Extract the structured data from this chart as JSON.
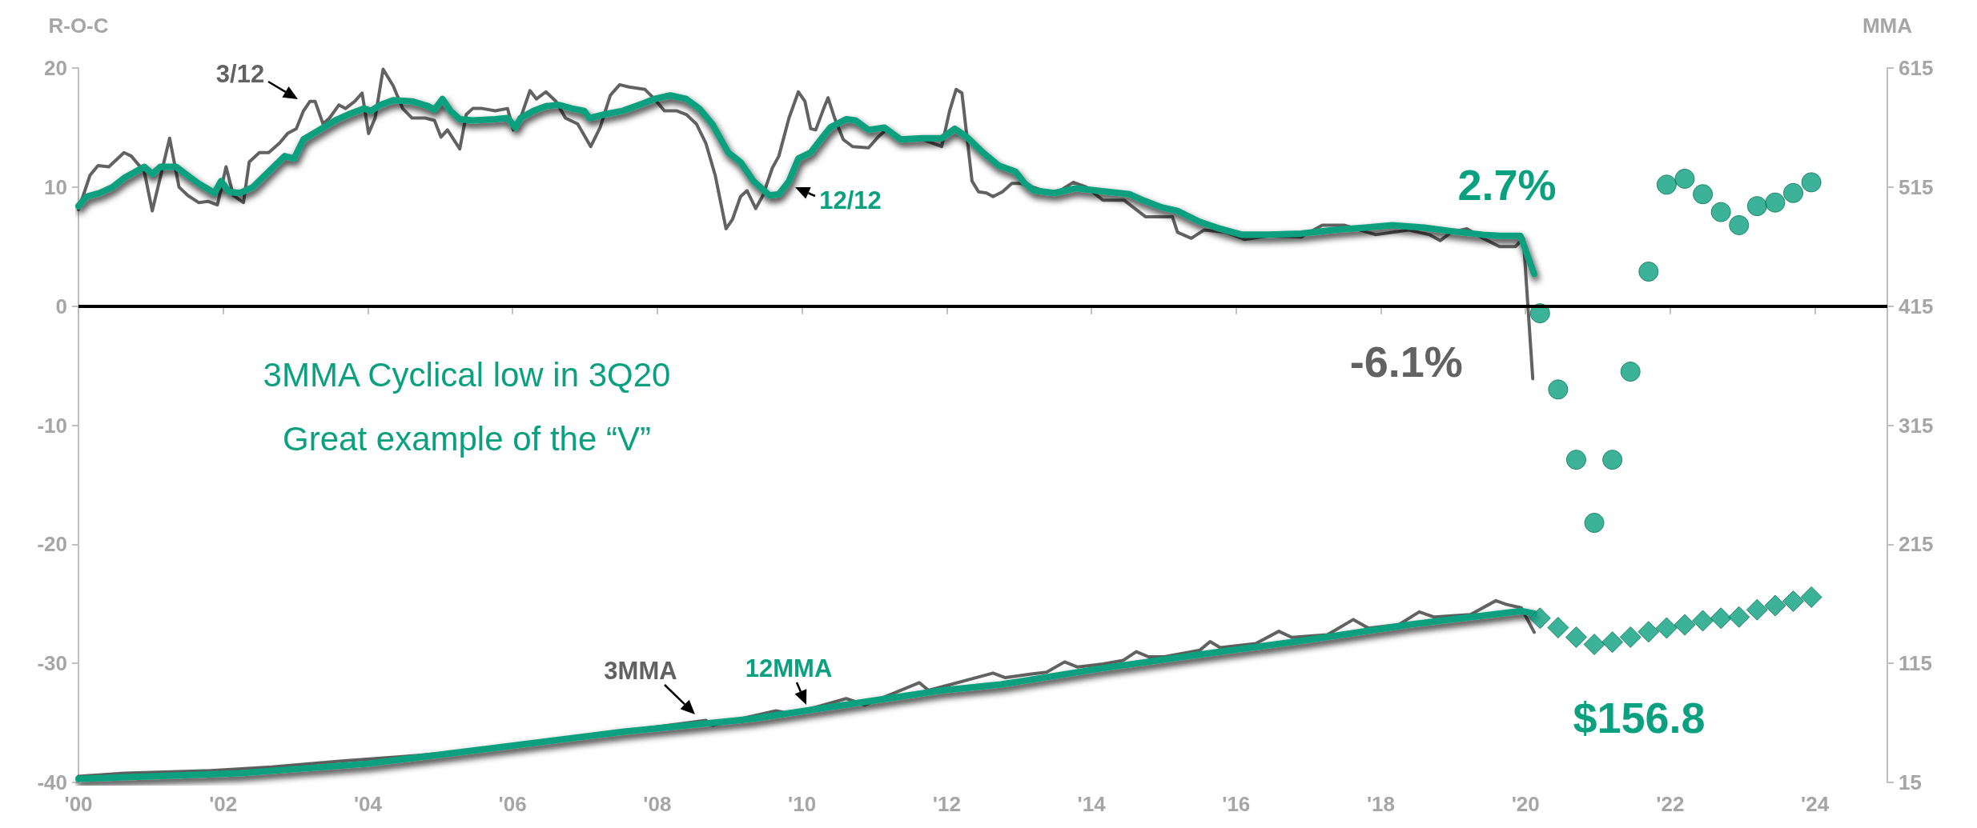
{
  "chart_data": {
    "type": "line",
    "ylabel": "R-O-C",
    "y2label": "MMA",
    "annotations": [
      "3MMA Cyclical low in 3Q20",
      "Great example of the “V”"
    ],
    "xlim": [
      2000,
      2025
    ],
    "xticks": [
      {
        "value": 2000,
        "label": "'00"
      },
      {
        "value": 2002,
        "label": "'02"
      },
      {
        "value": 2004,
        "label": "'04"
      },
      {
        "value": 2006,
        "label": "'06"
      },
      {
        "value": 2008,
        "label": "'08"
      },
      {
        "value": 2010,
        "label": "'10"
      },
      {
        "value": 2012,
        "label": "'12"
      },
      {
        "value": 2014,
        "label": "'14"
      },
      {
        "value": 2016,
        "label": "'16"
      },
      {
        "value": 2018,
        "label": "'18"
      },
      {
        "value": 2020,
        "label": "'20"
      },
      {
        "value": 2022,
        "label": "'22"
      },
      {
        "value": 2024,
        "label": "'24"
      }
    ],
    "ylim": [
      -40,
      20
    ],
    "yticks": [
      -40,
      -30,
      -20,
      -10,
      0,
      10,
      20
    ],
    "y2lim": [
      15,
      615
    ],
    "y2ticks": [
      15,
      115,
      215,
      315,
      415,
      515,
      615
    ],
    "legend": false,
    "ref_lines": [
      {
        "axis": "y",
        "value": 0,
        "color": "#000000"
      }
    ],
    "series": [
      {
        "name": "3/12",
        "type": "line",
        "axis": "y",
        "marker": "none",
        "color": "#626262",
        "x": [
          2000.0,
          2000.16,
          2000.27,
          2000.42,
          2000.63,
          2000.73,
          2000.91,
          2001.02,
          2001.13,
          2001.26,
          2001.39,
          2001.51,
          2001.66,
          2001.79,
          2001.92,
          2002.04,
          2002.14,
          2002.28,
          2002.36,
          2002.5,
          2002.63,
          2002.78,
          2002.89,
          2003.01,
          2003.11,
          2003.2,
          2003.27,
          2003.38,
          2003.47,
          2003.6,
          2003.69,
          2003.82,
          2003.92,
          2004.01,
          2004.1,
          2004.21,
          2004.35,
          2004.48,
          2004.61,
          2004.79,
          2004.92,
          2005.01,
          2005.1,
          2005.27,
          2005.36,
          2005.45,
          2005.58,
          2005.76,
          2005.93,
          2006.01,
          2006.11,
          2006.24,
          2006.33,
          2006.46,
          2006.6,
          2006.73,
          2006.9,
          2007.08,
          2007.21,
          2007.35,
          2007.48,
          2007.61,
          2007.83,
          2007.96,
          2008.1,
          2008.27,
          2008.4,
          2008.54,
          2008.67,
          2008.8,
          2008.95,
          2009.04,
          2009.15,
          2009.24,
          2009.36,
          2009.46,
          2009.59,
          2009.68,
          2009.82,
          2009.95,
          2010.04,
          2010.12,
          2010.19,
          2010.3,
          2010.36,
          2010.45,
          2010.57,
          2010.7,
          2010.92,
          2011.05,
          2011.18,
          2011.4,
          2011.67,
          2011.93,
          2012.04,
          2012.13,
          2012.21,
          2012.35,
          2012.44,
          2012.55,
          2012.64,
          2012.77,
          2012.9,
          2013.03,
          2013.49,
          2013.75,
          2013.93,
          2014.16,
          2014.45,
          2014.75,
          2015.12,
          2015.19,
          2015.38,
          2015.56,
          2015.86,
          2016.12,
          2016.45,
          2016.9,
          2017.19,
          2017.49,
          2017.93,
          2018.38,
          2018.67,
          2018.82,
          2018.97,
          2019.19,
          2019.41,
          2019.64,
          2019.86,
          2019.97,
          2020.1
        ],
        "values": [
          8.1,
          11.0,
          11.8,
          11.7,
          12.9,
          12.6,
          11.3,
          8.0,
          10.8,
          14.1,
          10.0,
          9.3,
          8.7,
          8.8,
          8.5,
          11.7,
          9.3,
          8.7,
          12.1,
          12.9,
          12.9,
          13.7,
          14.5,
          14.9,
          16.4,
          17.2,
          17.2,
          15.3,
          15.8,
          16.9,
          16.6,
          17.2,
          17.9,
          14.5,
          15.8,
          19.9,
          18.5,
          16.6,
          15.8,
          15.8,
          15.6,
          14.2,
          14.8,
          13.2,
          16.1,
          16.6,
          16.6,
          16.4,
          16.6,
          14.8,
          15.8,
          18.1,
          17.4,
          18.0,
          17.2,
          15.8,
          15.3,
          13.4,
          15.0,
          17.7,
          18.6,
          18.4,
          18.2,
          17.4,
          16.4,
          16.4,
          16.1,
          15.3,
          13.7,
          11.0,
          6.5,
          7.3,
          9.2,
          9.7,
          8.2,
          9.3,
          11.6,
          12.6,
          15.8,
          18.0,
          17.2,
          14.9,
          14.8,
          16.6,
          17.5,
          15.8,
          14.0,
          13.4,
          13.3,
          14.2,
          14.9,
          14.0,
          14.0,
          13.4,
          16.4,
          18.2,
          17.9,
          10.5,
          9.6,
          9.5,
          9.2,
          9.6,
          10.3,
          10.3,
          9.4,
          10.4,
          10.0,
          8.9,
          8.9,
          7.5,
          7.5,
          6.2,
          5.7,
          6.4,
          6.2,
          5.6,
          5.9,
          5.8,
          6.8,
          6.8,
          6.0,
          6.4,
          6.0,
          5.5,
          6.2,
          6.5,
          5.7,
          5.0,
          5.0,
          5.7,
          -6.1
        ],
        "value_labels": [
          null,
          null,
          null,
          null,
          null,
          null,
          null,
          null,
          null,
          null,
          null,
          null,
          null,
          null,
          null,
          null,
          null,
          null,
          null,
          null,
          null,
          null,
          null,
          null,
          null,
          null,
          null,
          null,
          null,
          null,
          null,
          null,
          null,
          null,
          null,
          null,
          null,
          null,
          null,
          null,
          null,
          null,
          null,
          null,
          null,
          null,
          null,
          null,
          null,
          null,
          null,
          null,
          null,
          null,
          null,
          null,
          null,
          null,
          null,
          null,
          null,
          null,
          null,
          null,
          null,
          null,
          null,
          null,
          null,
          null,
          null,
          null,
          null,
          null,
          null,
          null,
          null,
          null,
          null,
          null,
          null,
          null,
          null,
          null,
          null,
          null,
          null,
          null,
          null,
          null,
          null,
          null,
          null,
          null,
          null,
          null,
          null,
          null,
          null,
          null,
          null,
          null,
          null,
          null,
          null,
          null,
          null,
          null,
          null,
          null,
          null,
          null,
          null,
          null,
          null,
          null,
          null,
          null,
          null,
          null,
          null,
          null,
          null,
          null,
          null,
          null,
          null,
          null,
          null,
          null,
          "-6.1%"
        ]
      },
      {
        "name": "12/12",
        "type": "line",
        "axis": "y",
        "marker": "none",
        "color": "#0ba07f",
        "x": [
          2000.0,
          2000.11,
          2000.29,
          2000.47,
          2000.64,
          2000.91,
          2001.02,
          2001.13,
          2001.35,
          2001.48,
          2001.66,
          2001.88,
          2001.97,
          2002.08,
          2002.23,
          2002.41,
          2002.63,
          2002.85,
          2002.98,
          2003.11,
          2003.33,
          2003.55,
          2003.73,
          2003.95,
          2004.04,
          2004.17,
          2004.35,
          2004.61,
          2004.83,
          2004.92,
          2005.03,
          2005.14,
          2005.27,
          2005.45,
          2005.76,
          2005.93,
          2006.04,
          2006.11,
          2006.29,
          2006.46,
          2006.64,
          2006.82,
          2006.99,
          2007.06,
          2007.26,
          2007.52,
          2007.79,
          2007.96,
          2008.18,
          2008.4,
          2008.58,
          2008.76,
          2008.98,
          2009.15,
          2009.33,
          2009.55,
          2009.68,
          2009.82,
          2009.95,
          2010.12,
          2010.26,
          2010.39,
          2010.61,
          2010.74,
          2010.92,
          2011.14,
          2011.36,
          2011.67,
          2011.93,
          2012.11,
          2012.28,
          2012.5,
          2012.72,
          2012.95,
          2013.08,
          2013.21,
          2013.49,
          2013.78,
          2014.08,
          2014.53,
          2014.67,
          2014.97,
          2015.19,
          2015.49,
          2015.78,
          2016.08,
          2016.45,
          2016.9,
          2017.34,
          2017.78,
          2018.16,
          2018.6,
          2018.97,
          2019.41,
          2019.64,
          2019.93,
          2020.12
        ],
        "values": [
          8.4,
          9.2,
          9.5,
          10.0,
          10.8,
          11.7,
          11.1,
          11.7,
          11.7,
          11.1,
          10.3,
          9.5,
          10.5,
          9.6,
          9.5,
          10.0,
          11.3,
          12.6,
          12.4,
          14.0,
          14.8,
          15.6,
          16.1,
          16.6,
          16.4,
          16.9,
          17.3,
          17.2,
          16.8,
          16.5,
          17.4,
          16.4,
          15.7,
          15.6,
          15.7,
          15.8,
          15.0,
          15.8,
          16.4,
          16.8,
          16.9,
          16.6,
          16.4,
          15.8,
          16.1,
          16.4,
          17.0,
          17.4,
          17.7,
          17.4,
          16.6,
          15.3,
          12.9,
          12.1,
          10.5,
          9.3,
          9.4,
          10.5,
          12.4,
          12.9,
          14.0,
          15.0,
          15.7,
          15.6,
          14.8,
          15.0,
          14.0,
          14.1,
          14.1,
          14.9,
          14.2,
          12.9,
          11.8,
          11.3,
          10.3,
          9.7,
          9.5,
          9.9,
          9.7,
          9.4,
          9.0,
          8.3,
          8.0,
          7.1,
          6.5,
          6.0,
          6.0,
          6.1,
          6.4,
          6.6,
          6.8,
          6.6,
          6.3,
          6.0,
          5.9,
          5.9,
          2.7
        ],
        "value_labels": [
          null,
          null,
          null,
          null,
          null,
          null,
          null,
          null,
          null,
          null,
          null,
          null,
          null,
          null,
          null,
          null,
          null,
          null,
          null,
          null,
          null,
          null,
          null,
          null,
          null,
          null,
          null,
          null,
          null,
          null,
          null,
          null,
          null,
          null,
          null,
          null,
          null,
          null,
          null,
          null,
          null,
          null,
          null,
          null,
          null,
          null,
          null,
          null,
          null,
          null,
          null,
          null,
          null,
          null,
          null,
          null,
          null,
          null,
          null,
          null,
          null,
          null,
          null,
          null,
          null,
          null,
          null,
          null,
          null,
          null,
          null,
          null,
          null,
          null,
          null,
          null,
          null,
          null,
          null,
          null,
          null,
          null,
          null,
          null,
          null,
          null,
          null,
          null,
          null,
          null,
          null,
          null,
          null,
          null,
          null,
          null,
          "2.7%"
        ]
      },
      {
        "name": "3MMA",
        "type": "line",
        "axis": "y2",
        "marker": "none",
        "color": "#626262",
        "x": [
          2000.0,
          2000.64,
          2001.79,
          2002.67,
          2003.64,
          2004.7,
          2005.67,
          2006.64,
          2007.61,
          2008.67,
          2008.76,
          2009.64,
          2009.86,
          2010.61,
          2010.87,
          2011.62,
          2011.75,
          2012.64,
          2012.81,
          2013.17,
          2013.38,
          2013.63,
          2013.81,
          2014.16,
          2014.44,
          2014.62,
          2014.79,
          2015.01,
          2015.5,
          2015.64,
          2015.78,
          2016.27,
          2016.59,
          2016.77,
          2017.26,
          2017.62,
          2017.83,
          2018.25,
          2018.53,
          2018.74,
          2019.24,
          2019.59,
          2019.73,
          2019.94,
          2020.12
        ],
        "values": [
          20.0,
          22.7,
          24.8,
          28.0,
          32.9,
          37.7,
          43.0,
          50.5,
          58.6,
          67.1,
          62.9,
          75.2,
          72.5,
          85.4,
          80.0,
          98.8,
          92.3,
          106.8,
          103.0,
          106.0,
          107.6,
          116.2,
          111.9,
          114.5,
          117.5,
          124.8,
          120.5,
          120.5,
          126.1,
          133.3,
          128.2,
          131.6,
          141.9,
          136.8,
          138.9,
          151.8,
          144.5,
          147.5,
          158.2,
          153.9,
          156.0,
          167.6,
          164.6,
          161.6,
          141.1
        ]
      },
      {
        "name": "12MMA",
        "type": "line",
        "axis": "y2",
        "marker": "none",
        "color": "#0ba07f",
        "x": [
          2000.0,
          2002.23,
          2003.99,
          2005.76,
          2007.52,
          2009.29,
          2010.17,
          2011.93,
          2012.75,
          2014.16,
          2015.57,
          2016.98,
          2018.39,
          2019.94,
          2020.12
        ],
        "values": [
          18.0,
          22.7,
          30.7,
          44.0,
          57.5,
          68.2,
          76.3,
          92.3,
          97.3,
          111.0,
          123.0,
          134.6,
          147.5,
          159.0,
          156.8
        ],
        "value_labels": [
          null,
          null,
          null,
          null,
          null,
          null,
          null,
          null,
          null,
          null,
          null,
          null,
          null,
          null,
          "$156.8"
        ]
      },
      {
        "type": "scatter",
        "axis": "y",
        "marker": "circle",
        "color": "#0ba07f",
        "x": [
          2020.2,
          2020.45,
          2020.7,
          2020.95,
          2021.2,
          2021.45,
          2021.7,
          2021.95,
          2022.2,
          2022.45,
          2022.7,
          2022.95,
          2023.2,
          2023.45,
          2023.7,
          2023.95
        ],
        "values": [
          -0.6,
          -7.0,
          -12.9,
          -18.2,
          -12.9,
          -5.5,
          2.9,
          10.2,
          10.7,
          9.4,
          7.9,
          6.8,
          8.4,
          8.7,
          9.5,
          10.4
        ]
      },
      {
        "type": "scatter",
        "axis": "y2",
        "marker": "diamond",
        "color": "#0ba07f",
        "x": [
          2020.2,
          2020.45,
          2020.7,
          2020.95,
          2021.2,
          2021.45,
          2021.7,
          2021.95,
          2022.2,
          2022.45,
          2022.7,
          2022.95,
          2023.2,
          2023.45,
          2023.7,
          2023.95
        ],
        "values": [
          152.9,
          145.0,
          137.0,
          130.9,
          132.8,
          137.0,
          141.5,
          144.7,
          147.3,
          150.8,
          152.9,
          153.9,
          160.0,
          163.5,
          167.2,
          170.6
        ]
      }
    ]
  }
}
